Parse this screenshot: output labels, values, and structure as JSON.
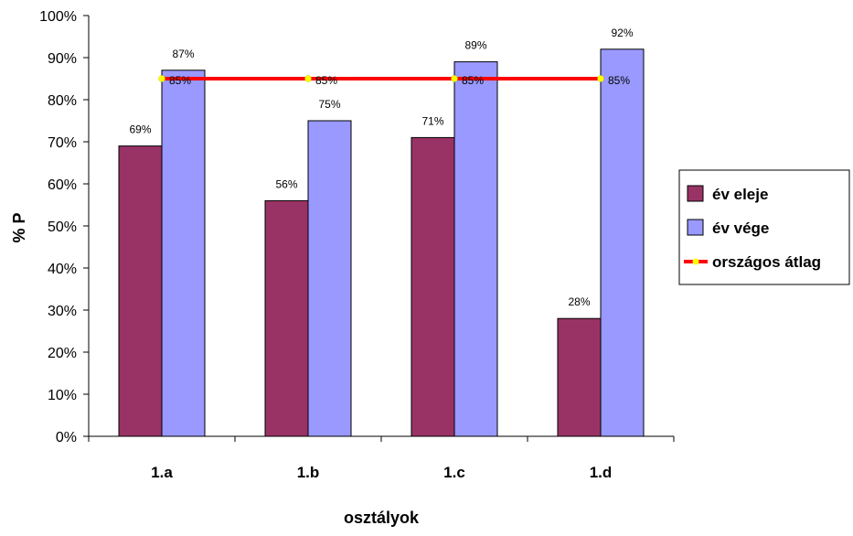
{
  "chart_data": {
    "type": "bar",
    "categories": [
      "1.a",
      "1.b",
      "1.c",
      "1.d"
    ],
    "series": [
      {
        "name": "év eleje",
        "type": "bar",
        "values": [
          69,
          56,
          71,
          28
        ],
        "color": "#993366"
      },
      {
        "name": "év vége",
        "type": "bar",
        "values": [
          87,
          75,
          89,
          92
        ],
        "color": "#9999ff"
      },
      {
        "name": "országos átlag",
        "type": "line",
        "values": [
          85,
          85,
          85,
          85
        ],
        "color": "#ff0000",
        "marker_color": "#ffff00"
      }
    ],
    "data_labels": {
      "év eleje": [
        "69%",
        "56%",
        "71%",
        "28%"
      ],
      "év vége": [
        "87%",
        "75%",
        "89%",
        "92%"
      ],
      "országos átlag": [
        "85%",
        "85%",
        "85%",
        "85%"
      ]
    },
    "y_ticks": [
      "0%",
      "10%",
      "20%",
      "30%",
      "40%",
      "50%",
      "60%",
      "70%",
      "80%",
      "90%",
      "100%"
    ],
    "xlabel": "osztályok",
    "ylabel": "% P",
    "ylim": [
      0,
      100
    ],
    "grid": false,
    "legend_position": "right"
  }
}
